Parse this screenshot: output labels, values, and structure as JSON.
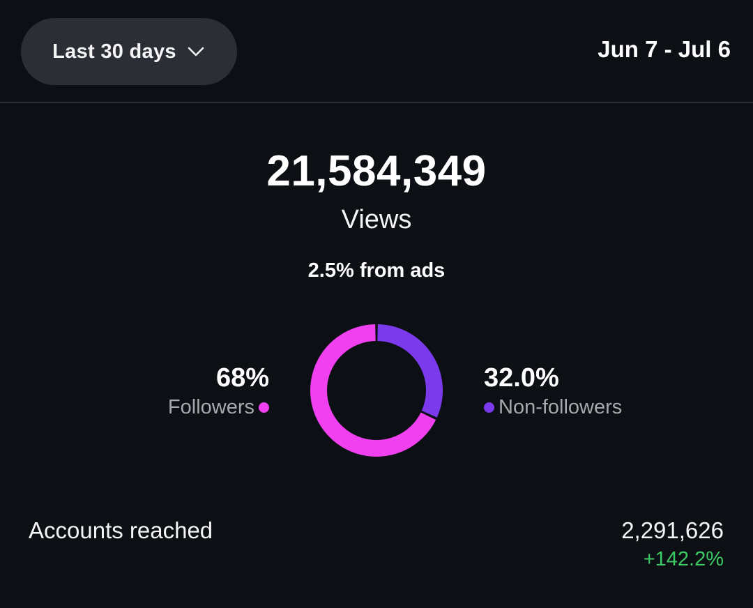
{
  "header": {
    "range_label": "Last 30 days",
    "date_range": "Jun 7 - Jul 6"
  },
  "summary": {
    "total_value": "21,584,349",
    "total_label": "Views",
    "ads_note": "2.5% from ads"
  },
  "audience": {
    "followers": {
      "percent_label": "68%",
      "label": "Followers",
      "value": 68.0,
      "color": "#f040f0"
    },
    "non_followers": {
      "percent_label": "32.0%",
      "label": "Non-followers",
      "value": 32.0,
      "color": "#7c3aed"
    }
  },
  "accounts_reached": {
    "label": "Accounts reached",
    "value": "2,291,626",
    "change": "+142.2%"
  },
  "icons": {
    "dropdown": "chevron-down-icon"
  }
}
